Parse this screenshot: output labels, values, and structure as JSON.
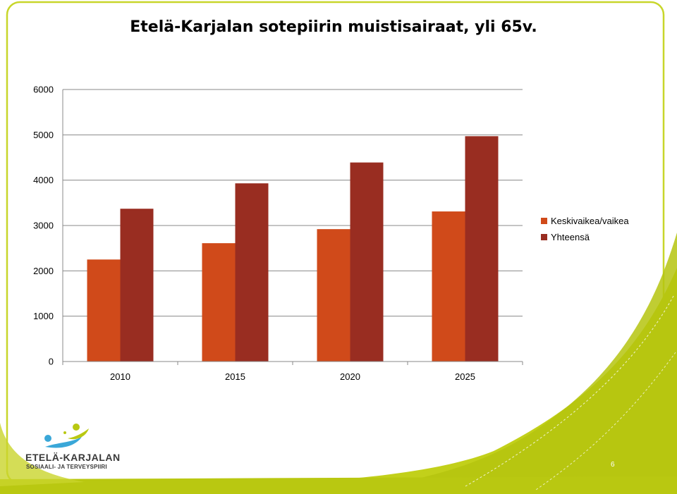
{
  "title": "Etelä-Karjalan sotepiirin muistisairaat, yli 65v.",
  "page_number": "6",
  "logo": {
    "name": "ETELÄ-KARJALAN",
    "subtitle": "SOSIAALI- JA TERVEYSPIIRI"
  },
  "colors": {
    "series1": "#d04a1a",
    "series2": "#992d21",
    "accent_green": "#b9c811",
    "frame_border": "#bccc1c",
    "gridline": "#888888"
  },
  "chart_data": {
    "type": "bar",
    "title": "",
    "xlabel": "",
    "ylabel": "",
    "categories": [
      "2010",
      "2015",
      "2020",
      "2025"
    ],
    "series": [
      {
        "name": "Keskivaikea/vaikea",
        "values": [
          2250,
          2610,
          2920,
          3310
        ]
      },
      {
        "name": "Yhteensä",
        "values": [
          3370,
          3930,
          4390,
          4970
        ]
      }
    ],
    "ylim": [
      0,
      6000
    ],
    "yticks": [
      0,
      1000,
      2000,
      3000,
      4000,
      5000,
      6000
    ],
    "grid": true,
    "legend_position": "right"
  }
}
